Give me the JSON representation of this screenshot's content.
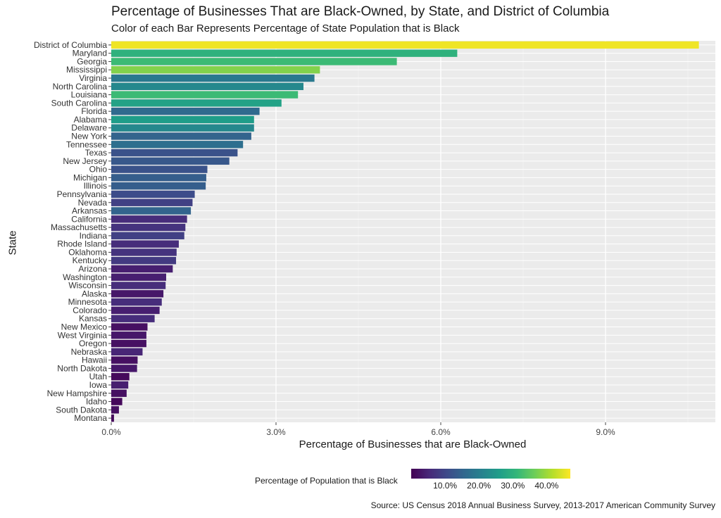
{
  "chart_data": {
    "type": "bar",
    "orientation": "horizontal",
    "title": "Percentage of Businesses That are Black-Owned, by State, and District of Columbia",
    "subtitle": "Color of each Bar Represents Percentage of State Population that is Black",
    "xlabel": "Percentage of Businesses that are Black-Owned",
    "ylabel": "State",
    "xlim": [
      0,
      11
    ],
    "x_ticks": [
      0,
      3,
      6,
      9
    ],
    "x_tick_labels": [
      "0.0%",
      "3.0%",
      "6.0%",
      "9.0%"
    ],
    "grid": true,
    "categories": [
      "District of Columbia",
      "Maryland",
      "Georgia",
      "Mississippi",
      "Virginia",
      "North Carolina",
      "Louisiana",
      "South Carolina",
      "Florida",
      "Alabama",
      "Delaware",
      "New York",
      "Tennessee",
      "Texas",
      "New Jersey",
      "Ohio",
      "Michigan",
      "Illinois",
      "Pennsylvania",
      "Nevada",
      "Arkansas",
      "California",
      "Massachusetts",
      "Indiana",
      "Rhode Island",
      "Oklahoma",
      "Kentucky",
      "Arizona",
      "Washington",
      "Wisconsin",
      "Alaska",
      "Minnesota",
      "Colorado",
      "Kansas",
      "New Mexico",
      "West Virginia",
      "Oregon",
      "Nebraska",
      "Hawaii",
      "North Dakota",
      "Utah",
      "Iowa",
      "New Hampshire",
      "Idaho",
      "South Dakota",
      "Montana"
    ],
    "values": [
      10.7,
      6.3,
      5.2,
      3.8,
      3.7,
      3.5,
      3.4,
      3.1,
      2.7,
      2.6,
      2.6,
      2.55,
      2.4,
      2.3,
      2.15,
      1.75,
      1.73,
      1.72,
      1.52,
      1.48,
      1.45,
      1.38,
      1.35,
      1.33,
      1.23,
      1.19,
      1.18,
      1.12,
      1.0,
      0.99,
      0.95,
      0.92,
      0.88,
      0.79,
      0.66,
      0.64,
      0.64,
      0.57,
      0.48,
      0.47,
      0.33,
      0.31,
      0.28,
      0.2,
      0.14,
      0.05
    ],
    "color_values": [
      46,
      30,
      32,
      38,
      19,
      22,
      32,
      27,
      16,
      26,
      22,
      15,
      17,
      12,
      13,
      12,
      14,
      14,
      11,
      9,
      15,
      6,
      7,
      9,
      6,
      7,
      8,
      4,
      4,
      6,
      3,
      6,
      4,
      6,
      2,
      3,
      2,
      5,
      2,
      3,
      1,
      4,
      2,
      1,
      2,
      1
    ],
    "color_scale": {
      "title": "Percentage of Population that is Black",
      "palette": [
        "#440154",
        "#482878",
        "#3e4989",
        "#31688e",
        "#26828e",
        "#1f9e89",
        "#35b779",
        "#6ece58",
        "#b5de2b",
        "#fde725"
      ],
      "range": [
        0,
        47
      ],
      "ticks": [
        10,
        20,
        30,
        40
      ],
      "tick_labels": [
        "10.0%",
        "20.0%",
        "30.0%",
        "40.0%"
      ],
      "position": "bottom"
    },
    "source": "Source: US Census 2018 Annual Business Survey, 2013-2017 American Community Survey"
  }
}
